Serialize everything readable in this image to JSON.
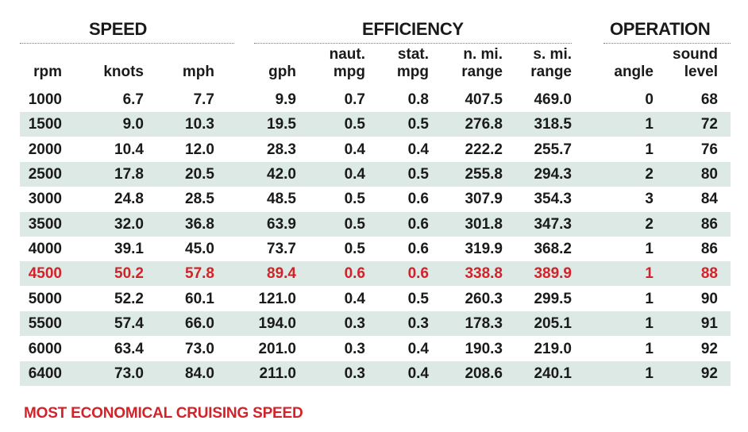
{
  "groups": {
    "speed": "SPEED",
    "efficiency": "EFFICIENCY",
    "operation": "OPERATION"
  },
  "columns": [
    {
      "key": "rpm",
      "line1": "",
      "line2": "rpm"
    },
    {
      "key": "knots",
      "line1": "",
      "line2": "knots"
    },
    {
      "key": "mph",
      "line1": "",
      "line2": "mph"
    },
    {
      "key": "gph",
      "line1": "",
      "line2": "gph"
    },
    {
      "key": "naut_mpg",
      "line1": "naut.",
      "line2": "mpg"
    },
    {
      "key": "stat_mpg",
      "line1": "stat.",
      "line2": "mpg"
    },
    {
      "key": "nmi_range",
      "line1": "n. mi.",
      "line2": "range"
    },
    {
      "key": "smi_range",
      "line1": "s. mi.",
      "line2": "range"
    },
    {
      "key": "angle",
      "line1": "",
      "line2": "angle"
    },
    {
      "key": "sound",
      "line1": "sound",
      "line2": "level"
    }
  ],
  "rows": [
    [
      "1000",
      "6.7",
      "7.7",
      "9.9",
      "0.7",
      "0.8",
      "407.5",
      "469.0",
      "0",
      "68"
    ],
    [
      "1500",
      "9.0",
      "10.3",
      "19.5",
      "0.5",
      "0.5",
      "276.8",
      "318.5",
      "1",
      "72"
    ],
    [
      "2000",
      "10.4",
      "12.0",
      "28.3",
      "0.4",
      "0.4",
      "222.2",
      "255.7",
      "1",
      "76"
    ],
    [
      "2500",
      "17.8",
      "20.5",
      "42.0",
      "0.4",
      "0.5",
      "255.8",
      "294.3",
      "2",
      "80"
    ],
    [
      "3000",
      "24.8",
      "28.5",
      "48.5",
      "0.5",
      "0.6",
      "307.9",
      "354.3",
      "3",
      "84"
    ],
    [
      "3500",
      "32.0",
      "36.8",
      "63.9",
      "0.5",
      "0.6",
      "301.8",
      "347.3",
      "2",
      "86"
    ],
    [
      "4000",
      "39.1",
      "45.0",
      "73.7",
      "0.5",
      "0.6",
      "319.9",
      "368.2",
      "1",
      "86"
    ],
    [
      "4500",
      "50.2",
      "57.8",
      "89.4",
      "0.6",
      "0.6",
      "338.8",
      "389.9",
      "1",
      "88"
    ],
    [
      "5000",
      "52.2",
      "60.1",
      "121.0",
      "0.4",
      "0.5",
      "260.3",
      "299.5",
      "1",
      "90"
    ],
    [
      "5500",
      "57.4",
      "66.0",
      "194.0",
      "0.3",
      "0.3",
      "178.3",
      "205.1",
      "1",
      "91"
    ],
    [
      "6000",
      "63.4",
      "73.0",
      "201.0",
      "0.3",
      "0.4",
      "190.3",
      "219.0",
      "1",
      "92"
    ],
    [
      "6400",
      "73.0",
      "84.0",
      "211.0",
      "0.3",
      "0.4",
      "208.6",
      "240.1",
      "1",
      "92"
    ]
  ],
  "highlight_row_index": 7,
  "highlight_color": "#d2232a",
  "stripe_color": "#dde9e4",
  "footnote": "MOST ECONOMICAL CRUISING SPEED"
}
